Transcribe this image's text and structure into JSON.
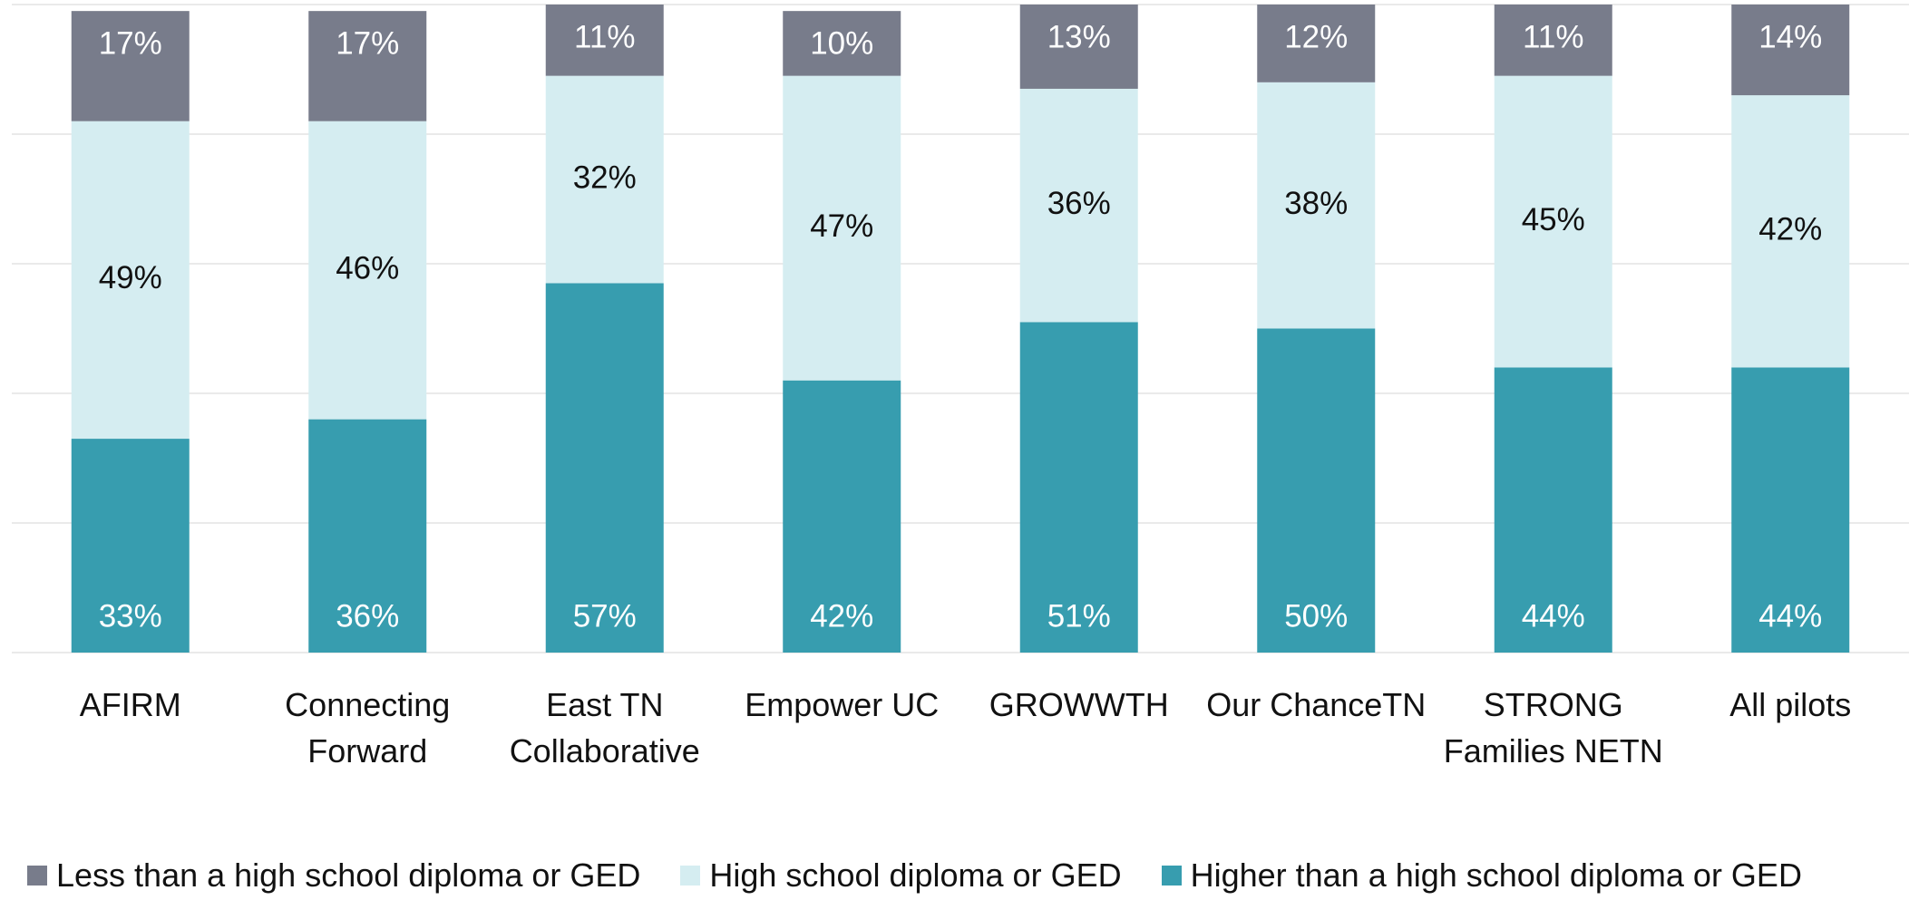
{
  "chart_data": {
    "type": "stacked_bar",
    "categories": [
      "AFIRM",
      "Connecting Forward",
      "East TN Collaborative",
      "Empower UC",
      "GROWWTH",
      "Our ChanceTN",
      "STRONG Families NETN",
      "All pilots"
    ],
    "series": [
      {
        "name": "Less than a high school diploma or GED",
        "color": "#787c8b",
        "values": [
          17,
          17,
          11,
          10,
          13,
          12,
          11,
          14
        ],
        "value_labels": [
          "17%",
          "17%",
          "11%",
          "10%",
          "13%",
          "12%",
          "11%",
          "14%"
        ]
      },
      {
        "name": "High school diploma or GED",
        "color": "#d5edf1",
        "values": [
          49,
          46,
          32,
          47,
          36,
          38,
          45,
          42
        ],
        "value_labels": [
          "49%",
          "46%",
          "32%",
          "47%",
          "36%",
          "38%",
          "45%",
          "42%"
        ]
      },
      {
        "name": "Higher than a high school diploma or GED",
        "color": "#379daf",
        "values": [
          33,
          36,
          57,
          42,
          51,
          50,
          44,
          44
        ],
        "value_labels": [
          "33%",
          "36%",
          "57%",
          "42%",
          "51%",
          "50%",
          "44%",
          "44%"
        ]
      }
    ],
    "ylim": [
      0,
      100
    ],
    "yticks": [
      0,
      20,
      40,
      60,
      80,
      100
    ],
    "grid": true,
    "legend": "bottom"
  }
}
